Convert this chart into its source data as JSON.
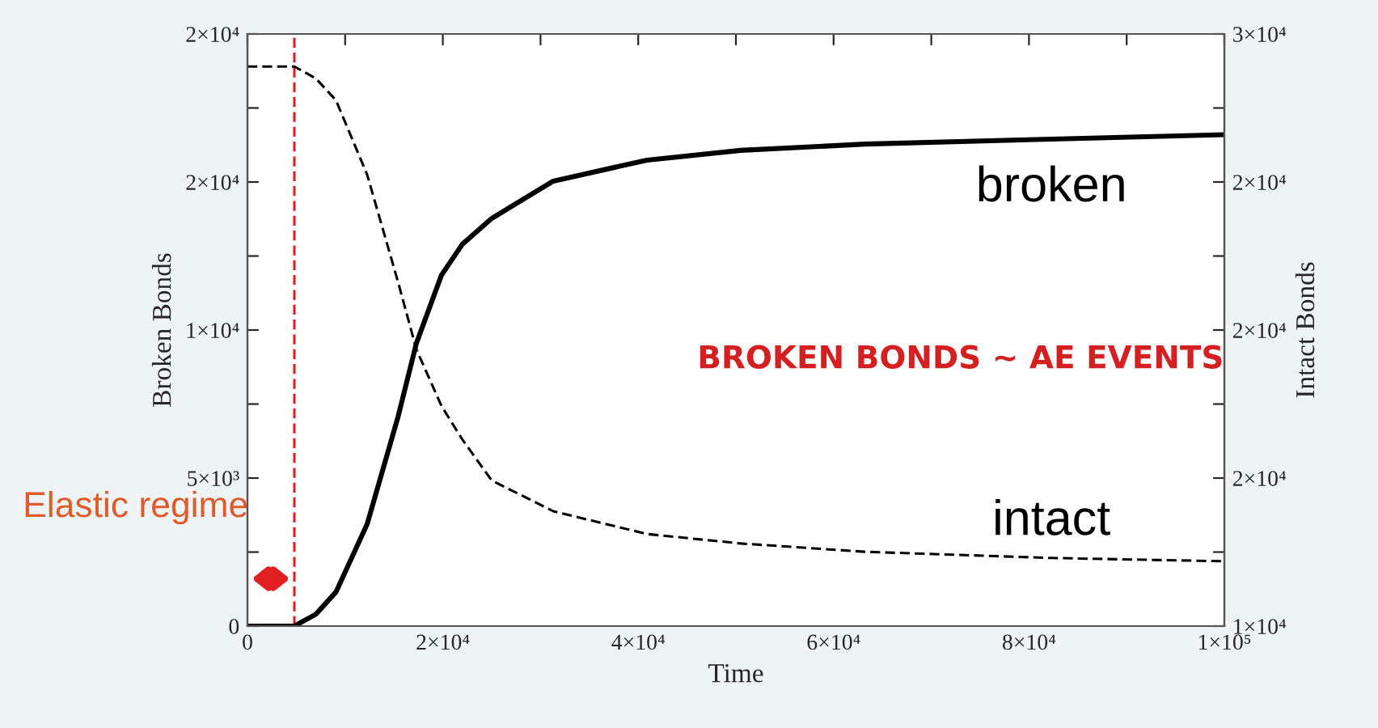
{
  "chart_data": {
    "type": "line",
    "xlabel": "Time",
    "ylabel": "Broken Bonds",
    "y2label": "Intact Bonds",
    "x": [
      0,
      4800,
      7000,
      9060,
      12250,
      15400,
      17300,
      19870,
      22000,
      25000,
      31300,
      40900,
      50500,
      63200,
      82300,
      100000
    ],
    "series": [
      {
        "name": "broken",
        "color": "#000000",
        "line_style": "solid",
        "values": [
          0,
          0,
          400,
          1150,
          3440,
          7050,
          9560,
          11860,
          12900,
          13770,
          15030,
          15740,
          16070,
          16280,
          16450,
          16600
        ]
      },
      {
        "name": "intact",
        "color": "#000000",
        "line_style": "dashed",
        "axis": "y2",
        "values": [
          28900,
          28900,
          28500,
          27760,
          25250,
          21640,
          19340,
          17430,
          16300,
          14920,
          13880,
          13110,
          12790,
          12510,
          12300,
          12190
        ]
      }
    ],
    "xlim": [
      0,
      100000
    ],
    "xticks": [
      0,
      {
        "value": 10000,
        "label": null
      },
      {
        "value": 20000,
        "label": "2×10⁴"
      },
      {
        "value": 30000,
        "label": null
      },
      {
        "value": 40000,
        "label": "4×10⁴"
      },
      {
        "value": 50000,
        "label": null
      },
      {
        "value": 60000,
        "label": "6×10⁴"
      },
      {
        "value": 70000,
        "label": null
      },
      {
        "value": 80000,
        "label": "8×10⁴"
      },
      {
        "value": 90000,
        "label": null
      },
      {
        "value": 100000,
        "label": "1×10⁵"
      }
    ],
    "ylim": [
      0,
      20000
    ],
    "yticks": [
      0,
      {
        "value": 2500,
        "label": null
      },
      {
        "value": 5000,
        "label": "5×10³"
      },
      {
        "value": 7500,
        "label": null
      },
      {
        "value": 10000,
        "label": "1×10⁴"
      },
      {
        "value": 12500,
        "label": null
      },
      {
        "value": 15000,
        "label": "2×10⁴"
      },
      {
        "value": 17500,
        "label": null
      },
      {
        "value": 20000,
        "label": "2×10⁴"
      }
    ],
    "y2lim": [
      10000,
      30000
    ],
    "y2ticks": [
      {
        "value": 10000,
        "label": "1×10⁴"
      },
      {
        "value": 12500,
        "label": null
      },
      {
        "value": 15000,
        "label": "2×10⁴"
      },
      {
        "value": 17500,
        "label": null
      },
      {
        "value": 20000,
        "label": "2×10⁴"
      },
      {
        "value": 22500,
        "label": null
      },
      {
        "value": 25000,
        "label": "2×10⁴"
      },
      {
        "value": 27500,
        "label": null
      },
      {
        "value": 30000,
        "label": "3×10⁴"
      }
    ],
    "ref_lines": [
      {
        "axis": "x",
        "value": 4800,
        "color": "#e02020",
        "line_style": "dashed"
      }
    ],
    "annotations": [
      "BROKEN BONDS ~ AE EVENTS",
      "Elastic regime"
    ],
    "grid": false,
    "marker": "none"
  }
}
